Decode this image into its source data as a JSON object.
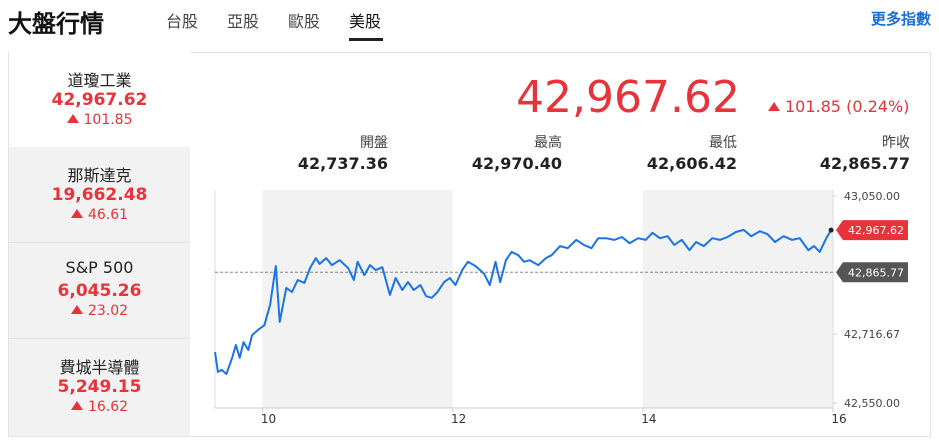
{
  "header": {
    "title": "大盤行情",
    "tabs": [
      "台股",
      "亞股",
      "歐股",
      "美股"
    ],
    "active_tab": 3,
    "more_link": "更多指數"
  },
  "sidebar": [
    {
      "name": "道瓊工業",
      "price": "42,967.62",
      "change": "101.85"
    },
    {
      "name": "那斯達克",
      "price": "19,662.48",
      "change": "46.61"
    },
    {
      "name": "S&P 500",
      "price": "6,045.26",
      "change": "23.02"
    },
    {
      "name": "費城半導體",
      "price": "5,249.15",
      "change": "16.62"
    }
  ],
  "quote": {
    "price": "42,967.62",
    "change": "101.85 (0.24%)",
    "stats": [
      {
        "label": "開盤",
        "value": "42,737.36"
      },
      {
        "label": "最高",
        "value": "42,970.40"
      },
      {
        "label": "最低",
        "value": "42,606.42"
      },
      {
        "label": "昨收",
        "value": "42,865.77"
      }
    ]
  },
  "chart_data": {
    "type": "line",
    "x": [
      9.5,
      9.53,
      9.57,
      9.62,
      9.68,
      9.72,
      9.76,
      9.8,
      9.85,
      9.89,
      9.95,
      10.02,
      10.08,
      10.14,
      10.18,
      10.25,
      10.31,
      10.37,
      10.44,
      10.5,
      10.56,
      10.6,
      10.67,
      10.73,
      10.81,
      10.9,
      10.96,
      11.0,
      11.07,
      11.13,
      11.19,
      11.26,
      11.34,
      11.4,
      11.47,
      11.53,
      11.59,
      11.66,
      11.72,
      11.78,
      11.84,
      11.91,
      11.97,
      12.03,
      12.1,
      12.16,
      12.24,
      12.33,
      12.39,
      12.45,
      12.5,
      12.56,
      12.62,
      12.69,
      12.75,
      12.81,
      12.9,
      12.98,
      13.04,
      13.13,
      13.21,
      13.3,
      13.38,
      13.46,
      13.53,
      13.61,
      13.7,
      13.78,
      13.86,
      13.95,
      14.03,
      14.1,
      14.18,
      14.26,
      14.33,
      14.41,
      14.49,
      14.56,
      14.64,
      14.73,
      14.81,
      14.89,
      14.98,
      15.06,
      15.14,
      15.23,
      15.31,
      15.39,
      15.48,
      15.57,
      15.65,
      15.74,
      15.8,
      15.86,
      15.93,
      15.98
    ],
    "series": [
      {
        "name": "道瓊工業",
        "color": "#1a73e8",
        "values": [
          42673,
          42625,
          42630,
          42620,
          42659,
          42690,
          42659,
          42697,
          42678,
          42714,
          42726,
          42738,
          42787,
          42881,
          42746,
          42828,
          42818,
          42847,
          42840,
          42876,
          42900,
          42886,
          42900,
          42883,
          42895,
          42876,
          42847,
          42891,
          42859,
          42883,
          42871,
          42878,
          42811,
          42852,
          42823,
          42842,
          42823,
          42835,
          42808,
          42804,
          42818,
          42842,
          42852,
          42835,
          42871,
          42891,
          42881,
          42862,
          42835,
          42891,
          42842,
          42895,
          42915,
          42907,
          42891,
          42895,
          42883,
          42900,
          42907,
          42929,
          42924,
          42944,
          42932,
          42924,
          42948,
          42948,
          42944,
          42951,
          42936,
          42948,
          42944,
          42961,
          42948,
          42953,
          42932,
          42944,
          42919,
          42939,
          42929,
          42948,
          42944,
          42951,
          42963,
          42968,
          42953,
          42965,
          42958,
          42939,
          42953,
          42944,
          42948,
          42919,
          42929,
          42915,
          42948,
          42967.62
        ]
      }
    ],
    "xlim": [
      9.5,
      16
    ],
    "xticks": [
      10,
      12,
      14,
      16
    ],
    "ylim": [
      42550,
      43050
    ],
    "yticks": [
      {
        "value": 42550,
        "label": "42,550.00"
      },
      {
        "value": 42716.67,
        "label": "42,716.67"
      },
      {
        "value": 43050,
        "label": "43,050.00"
      }
    ],
    "reference_line": {
      "value": 42865.77,
      "label": "42,865.77"
    },
    "last_value": {
      "value": 42967.62,
      "label": "42,967.62"
    }
  }
}
